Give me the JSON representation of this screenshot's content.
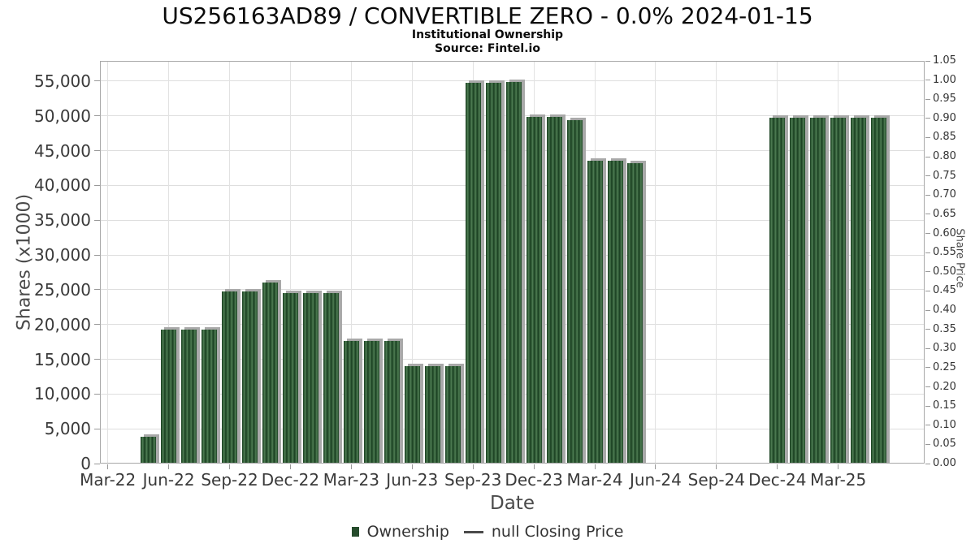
{
  "chart_data": {
    "type": "bar",
    "title": "US256163AD89 / CONVERTIBLE ZERO - 0.0% 2024-01-15",
    "subtitle": "Institutional Ownership",
    "source": "Source: Fintel.io",
    "xlabel": "Date",
    "ylabel": "Shares (x1000)",
    "ylabel_right": "Share Price",
    "grid": true,
    "legend_position": "bottom",
    "x_tick_labels": [
      "Mar-22",
      "Jun-22",
      "Sep-22",
      "Dec-22",
      "Mar-23",
      "Jun-23",
      "Sep-23",
      "Dec-23",
      "Mar-24",
      "Jun-24",
      "Sep-24",
      "Dec-24",
      "Mar-25"
    ],
    "y_left_tick_labels": [
      "0",
      "5,000",
      "10,000",
      "15,000",
      "20,000",
      "25,000",
      "30,000",
      "35,000",
      "40,000",
      "45,000",
      "50,000",
      "55,000"
    ],
    "y_left_tick_step": 5000,
    "y_right_tick_labels": [
      "0.00",
      "0.05",
      "0.10",
      "0.15",
      "0.20",
      "0.25",
      "0.30",
      "0.35",
      "0.40",
      "0.45",
      "0.50",
      "0.55",
      "0.60",
      "0.65",
      "0.70",
      "0.75",
      "0.80",
      "0.85",
      "0.90",
      "0.95",
      "1.00",
      "1.05"
    ],
    "y_right_tick_step": 0.05,
    "ylim_left": [
      0,
      57900
    ],
    "ylim_right": [
      0,
      1.05
    ],
    "legend": [
      {
        "label": "Ownership",
        "marker": "square"
      },
      {
        "label": "null Closing Price",
        "marker": "line"
      }
    ],
    "colors": {
      "bar_dark": "#1a3f21",
      "bar_mid": "#35613b",
      "bar_light": "#527f56",
      "bar_shadow": "#a9a9a9",
      "legend_square": "#264c2c"
    },
    "series": [
      {
        "name": "Ownership",
        "type": "bar",
        "unit": "shares x1000",
        "data": [
          {
            "x": "May-22",
            "y": 3900
          },
          {
            "x": "Jun-22",
            "y": 19300
          },
          {
            "x": "Jul-22",
            "y": 19300
          },
          {
            "x": "Aug-22",
            "y": 19300
          },
          {
            "x": "Sep-22",
            "y": 24700
          },
          {
            "x": "Oct-22",
            "y": 24700
          },
          {
            "x": "Nov-22",
            "y": 26000
          },
          {
            "x": "Dec-22",
            "y": 24500
          },
          {
            "x": "Jan-23",
            "y": 24500
          },
          {
            "x": "Feb-23",
            "y": 24500
          },
          {
            "x": "Mar-23",
            "y": 17600
          },
          {
            "x": "Apr-23",
            "y": 17600
          },
          {
            "x": "May-23",
            "y": 17600
          },
          {
            "x": "Jun-23",
            "y": 14000
          },
          {
            "x": "Jul-23",
            "y": 14000
          },
          {
            "x": "Aug-23",
            "y": 14000
          },
          {
            "x": "Sep-23",
            "y": 54800
          },
          {
            "x": "Oct-23",
            "y": 54800
          },
          {
            "x": "Nov-23",
            "y": 54900
          },
          {
            "x": "Dec-23",
            "y": 49800
          },
          {
            "x": "Jan-24",
            "y": 49800
          },
          {
            "x": "Feb-24",
            "y": 49400
          },
          {
            "x": "Mar-24",
            "y": 43600
          },
          {
            "x": "Apr-24",
            "y": 43600
          },
          {
            "x": "May-24",
            "y": 43200
          },
          {
            "x": "Dec-24",
            "y": 49700
          },
          {
            "x": "Jan-25",
            "y": 49700
          },
          {
            "x": "Feb-25",
            "y": 49700
          },
          {
            "x": "Mar-25",
            "y": 49700
          },
          {
            "x": "Apr-25",
            "y": 49700
          },
          {
            "x": "May-25",
            "y": 49700
          }
        ]
      },
      {
        "name": "null Closing Price",
        "type": "line",
        "data": []
      }
    ]
  }
}
